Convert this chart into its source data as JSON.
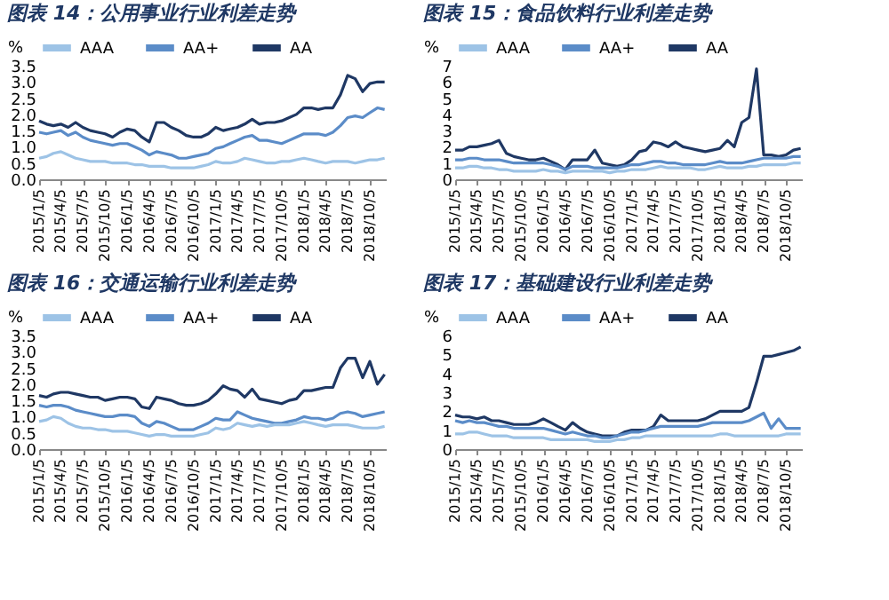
{
  "chart_data": [
    {
      "type": "line",
      "title": "图表 14：公用事业行业利差走势",
      "ylabel": "%",
      "legend": "top",
      "grid": false,
      "line_style": "solid",
      "marker": "none",
      "x": [
        "2015-01-05",
        "2015-02-05",
        "2015-03-05",
        "2015-04-05",
        "2015-05-05",
        "2015-06-05",
        "2015-07-05",
        "2015-08-05",
        "2015-09-05",
        "2015-10-05",
        "2015-11-05",
        "2015-12-05",
        "2016-01-05",
        "2016-02-05",
        "2016-03-05",
        "2016-04-05",
        "2016-05-05",
        "2016-06-05",
        "2016-07-05",
        "2016-08-05",
        "2016-09-05",
        "2016-10-05",
        "2016-11-05",
        "2016-12-05",
        "2017-01-05",
        "2017-02-05",
        "2017-03-05",
        "2017-04-05",
        "2017-05-05",
        "2017-06-05",
        "2017-07-05",
        "2017-08-05",
        "2017-09-05",
        "2017-10-05",
        "2017-11-05",
        "2017-12-05",
        "2018-01-05",
        "2018-02-05",
        "2018-03-05",
        "2018-04-05",
        "2018-05-05",
        "2018-06-05",
        "2018-07-05",
        "2018-08-05",
        "2018-09-05",
        "2018-10-05",
        "2018-11-05",
        "2018-12-05"
      ],
      "xlim": [
        "2015-01-05",
        "2018-12-10"
      ],
      "xticks": [
        {
          "value": "2015-01-05",
          "label": "2015/1/5"
        },
        {
          "value": "2015-04-05",
          "label": "2015/4/5"
        },
        {
          "value": "2015-07-05",
          "label": "2015/7/5"
        },
        {
          "value": "2015-10-05",
          "label": "2015/10/5"
        },
        {
          "value": "2016-01-05",
          "label": "2016/1/5"
        },
        {
          "value": "2016-04-05",
          "label": "2016/4/5"
        },
        {
          "value": "2016-07-05",
          "label": "2016/7/5"
        },
        {
          "value": "2016-10-05",
          "label": "2016/10/5"
        },
        {
          "value": "2017-01-05",
          "label": "2017/1/5"
        },
        {
          "value": "2017-04-05",
          "label": "2017/4/5"
        },
        {
          "value": "2017-07-05",
          "label": "2017/7/5"
        },
        {
          "value": "2017-10-05",
          "label": "2017/10/5"
        },
        {
          "value": "2018-01-05",
          "label": "2018/1/5"
        },
        {
          "value": "2018-04-05",
          "label": "2018/4/5"
        },
        {
          "value": "2018-07-05",
          "label": "2018/7/5"
        },
        {
          "value": "2018-10-05",
          "label": "2018/10/5"
        }
      ],
      "ylim": [
        0,
        3.5
      ],
      "yticks": [
        {
          "value": 0,
          "label": "0.0"
        },
        {
          "value": 0.5,
          "label": "0.5"
        },
        {
          "value": 1,
          "label": "1.0"
        },
        {
          "value": 1.5,
          "label": "1.5"
        },
        {
          "value": 2,
          "label": "2.0"
        },
        {
          "value": 2.5,
          "label": "2.5"
        },
        {
          "value": 3,
          "label": "3.0"
        },
        {
          "value": 3.5,
          "label": "3.5"
        }
      ],
      "series": [
        {
          "name": "AAA",
          "color": "#9dc3e6",
          "values": [
            0.65,
            0.7,
            0.8,
            0.85,
            0.75,
            0.65,
            0.6,
            0.55,
            0.55,
            0.55,
            0.5,
            0.5,
            0.5,
            0.45,
            0.45,
            0.4,
            0.4,
            0.4,
            0.35,
            0.35,
            0.35,
            0.35,
            0.4,
            0.45,
            0.55,
            0.5,
            0.5,
            0.55,
            0.65,
            0.6,
            0.55,
            0.5,
            0.5,
            0.55,
            0.55,
            0.6,
            0.65,
            0.6,
            0.55,
            0.5,
            0.55,
            0.55,
            0.55,
            0.5,
            0.55,
            0.6,
            0.6,
            0.65
          ]
        },
        {
          "name": "AA+",
          "color": "#5b8cc8",
          "values": [
            1.45,
            1.4,
            1.45,
            1.5,
            1.35,
            1.45,
            1.3,
            1.2,
            1.15,
            1.1,
            1.05,
            1.1,
            1.1,
            1.0,
            0.9,
            0.75,
            0.85,
            0.8,
            0.75,
            0.65,
            0.65,
            0.7,
            0.75,
            0.8,
            0.95,
            1.0,
            1.1,
            1.2,
            1.3,
            1.35,
            1.2,
            1.2,
            1.15,
            1.1,
            1.2,
            1.3,
            1.4,
            1.4,
            1.4,
            1.35,
            1.45,
            1.65,
            1.9,
            1.95,
            1.9,
            2.05,
            2.2,
            2.15
          ]
        },
        {
          "name": "AA",
          "color": "#1f3864",
          "values": [
            1.8,
            1.7,
            1.65,
            1.7,
            1.6,
            1.75,
            1.6,
            1.5,
            1.45,
            1.4,
            1.3,
            1.45,
            1.55,
            1.5,
            1.3,
            1.15,
            1.75,
            1.75,
            1.6,
            1.5,
            1.35,
            1.3,
            1.3,
            1.4,
            1.6,
            1.5,
            1.55,
            1.6,
            1.7,
            1.85,
            1.7,
            1.75,
            1.75,
            1.8,
            1.9,
            2.0,
            2.2,
            2.2,
            2.15,
            2.2,
            2.2,
            2.6,
            3.2,
            3.1,
            2.7,
            2.95,
            3.0,
            3.0
          ]
        }
      ]
    },
    {
      "type": "line",
      "title": "图表 15：食品饮料行业利差走势",
      "ylabel": "%",
      "legend": "top",
      "grid": false,
      "line_style": "solid",
      "marker": "none",
      "x": [
        "2015-01-05",
        "2015-02-05",
        "2015-03-05",
        "2015-04-05",
        "2015-05-05",
        "2015-06-05",
        "2015-07-05",
        "2015-08-05",
        "2015-09-05",
        "2015-10-05",
        "2015-11-05",
        "2015-12-05",
        "2016-01-05",
        "2016-02-05",
        "2016-03-05",
        "2016-04-05",
        "2016-05-05",
        "2016-06-05",
        "2016-07-05",
        "2016-08-05",
        "2016-09-05",
        "2016-10-05",
        "2016-11-05",
        "2016-12-05",
        "2017-01-05",
        "2017-02-05",
        "2017-03-05",
        "2017-04-05",
        "2017-05-05",
        "2017-06-05",
        "2017-07-05",
        "2017-08-05",
        "2017-09-05",
        "2017-10-05",
        "2017-11-05",
        "2017-12-05",
        "2018-01-05",
        "2018-02-05",
        "2018-03-05",
        "2018-04-05",
        "2018-05-05",
        "2018-06-05",
        "2018-07-05",
        "2018-08-05",
        "2018-09-05",
        "2018-10-05",
        "2018-11-05",
        "2018-12-05"
      ],
      "xlim": [
        "2015-01-05",
        "2018-12-10"
      ],
      "xticks": [
        {
          "value": "2015-01-05",
          "label": "2015/1/5"
        },
        {
          "value": "2015-04-05",
          "label": "2015/4/5"
        },
        {
          "value": "2015-07-05",
          "label": "2015/7/5"
        },
        {
          "value": "2015-10-05",
          "label": "2015/10/5"
        },
        {
          "value": "2016-01-05",
          "label": "2016/1/5"
        },
        {
          "value": "2016-04-05",
          "label": "2016/4/5"
        },
        {
          "value": "2016-07-05",
          "label": "2016/7/5"
        },
        {
          "value": "2016-10-05",
          "label": "2016/10/5"
        },
        {
          "value": "2017-01-05",
          "label": "2017/1/5"
        },
        {
          "value": "2017-04-05",
          "label": "2017/4/5"
        },
        {
          "value": "2017-07-05",
          "label": "2017/7/5"
        },
        {
          "value": "2017-10-05",
          "label": "2017/10/5"
        },
        {
          "value": "2018-01-05",
          "label": "2018/1/5"
        },
        {
          "value": "2018-04-05",
          "label": "2018/4/5"
        },
        {
          "value": "2018-07-05",
          "label": "2018/7/5"
        },
        {
          "value": "2018-10-05",
          "label": "2018/10/5"
        }
      ],
      "ylim": [
        0,
        7
      ],
      "yticks": [
        0,
        1,
        2,
        3,
        4,
        5,
        6,
        7
      ],
      "series": [
        {
          "name": "AAA",
          "color": "#9dc3e6",
          "values": [
            0.7,
            0.7,
            0.8,
            0.8,
            0.7,
            0.7,
            0.6,
            0.6,
            0.5,
            0.5,
            0.5,
            0.5,
            0.6,
            0.5,
            0.5,
            0.4,
            0.5,
            0.5,
            0.5,
            0.5,
            0.5,
            0.4,
            0.5,
            0.5,
            0.6,
            0.6,
            0.6,
            0.7,
            0.8,
            0.7,
            0.7,
            0.7,
            0.7,
            0.6,
            0.6,
            0.7,
            0.8,
            0.7,
            0.7,
            0.7,
            0.8,
            0.8,
            0.9,
            0.9,
            0.9,
            0.9,
            1.0,
            1.0
          ]
        },
        {
          "name": "AA+",
          "color": "#5b8cc8",
          "values": [
            1.2,
            1.2,
            1.3,
            1.3,
            1.2,
            1.2,
            1.2,
            1.1,
            1.0,
            1.0,
            1.0,
            1.0,
            1.0,
            0.9,
            0.8,
            0.6,
            0.8,
            0.8,
            0.8,
            0.7,
            0.7,
            0.7,
            0.7,
            0.8,
            0.9,
            0.9,
            1.0,
            1.1,
            1.1,
            1.0,
            1.0,
            0.9,
            0.9,
            0.9,
            0.9,
            1.0,
            1.1,
            1.0,
            1.0,
            1.0,
            1.1,
            1.2,
            1.3,
            1.3,
            1.3,
            1.3,
            1.4,
            1.4
          ]
        },
        {
          "name": "AA",
          "color": "#1f3864",
          "values": [
            1.8,
            1.8,
            2.0,
            2.0,
            2.1,
            2.2,
            2.4,
            1.6,
            1.4,
            1.3,
            1.2,
            1.2,
            1.3,
            1.1,
            0.9,
            0.6,
            1.2,
            1.2,
            1.2,
            1.8,
            1.0,
            0.9,
            0.8,
            0.9,
            1.2,
            1.7,
            1.8,
            2.3,
            2.2,
            2.0,
            2.3,
            2.0,
            1.9,
            1.8,
            1.7,
            1.8,
            1.9,
            2.4,
            2.0,
            3.5,
            3.8,
            6.8,
            1.5,
            1.5,
            1.4,
            1.5,
            1.8,
            1.9
          ]
        }
      ]
    },
    {
      "type": "line",
      "title": "图表 16：交通运输行业利差走势",
      "ylabel": "%",
      "legend": "top",
      "grid": false,
      "line_style": "solid",
      "marker": "none",
      "x": [
        "2015-01-05",
        "2015-02-05",
        "2015-03-05",
        "2015-04-05",
        "2015-05-05",
        "2015-06-05",
        "2015-07-05",
        "2015-08-05",
        "2015-09-05",
        "2015-10-05",
        "2015-11-05",
        "2015-12-05",
        "2016-01-05",
        "2016-02-05",
        "2016-03-05",
        "2016-04-05",
        "2016-05-05",
        "2016-06-05",
        "2016-07-05",
        "2016-08-05",
        "2016-09-05",
        "2016-10-05",
        "2016-11-05",
        "2016-12-05",
        "2017-01-05",
        "2017-02-05",
        "2017-03-05",
        "2017-04-05",
        "2017-05-05",
        "2017-06-05",
        "2017-07-05",
        "2017-08-05",
        "2017-09-05",
        "2017-10-05",
        "2017-11-05",
        "2017-12-05",
        "2018-01-05",
        "2018-02-05",
        "2018-03-05",
        "2018-04-05",
        "2018-05-05",
        "2018-06-05",
        "2018-07-05",
        "2018-08-05",
        "2018-09-05",
        "2018-10-05",
        "2018-11-05",
        "2018-12-05"
      ],
      "xlim": [
        "2015-01-05",
        "2018-12-10"
      ],
      "xticks": [
        {
          "value": "2015-01-05",
          "label": "2015/1/5"
        },
        {
          "value": "2015-04-05",
          "label": "2015/4/5"
        },
        {
          "value": "2015-07-05",
          "label": "2015/7/5"
        },
        {
          "value": "2015-10-05",
          "label": "2015/10/5"
        },
        {
          "value": "2016-01-05",
          "label": "2016/1/5"
        },
        {
          "value": "2016-04-05",
          "label": "2016/4/5"
        },
        {
          "value": "2016-07-05",
          "label": "2016/7/5"
        },
        {
          "value": "2016-10-05",
          "label": "2016/10/5"
        },
        {
          "value": "2017-01-05",
          "label": "2017/1/5"
        },
        {
          "value": "2017-04-05",
          "label": "2017/4/5"
        },
        {
          "value": "2017-07-05",
          "label": "2017/7/5"
        },
        {
          "value": "2017-10-05",
          "label": "2017/10/5"
        },
        {
          "value": "2018-01-05",
          "label": "2018/1/5"
        },
        {
          "value": "2018-04-05",
          "label": "2018/4/5"
        },
        {
          "value": "2018-07-05",
          "label": "2018/7/5"
        },
        {
          "value": "2018-10-05",
          "label": "2018/10/5"
        }
      ],
      "ylim": [
        0,
        3.5
      ],
      "yticks": [
        {
          "value": 0,
          "label": "0.0"
        },
        {
          "value": 0.5,
          "label": "0.5"
        },
        {
          "value": 1,
          "label": "1.0"
        },
        {
          "value": 1.5,
          "label": "1.5"
        },
        {
          "value": 2,
          "label": "2.0"
        },
        {
          "value": 2.5,
          "label": "2.5"
        },
        {
          "value": 3,
          "label": "3.0"
        },
        {
          "value": 3.5,
          "label": "3.5"
        }
      ],
      "series": [
        {
          "name": "AAA",
          "color": "#9dc3e6",
          "values": [
            0.85,
            0.9,
            1.0,
            0.95,
            0.8,
            0.7,
            0.65,
            0.65,
            0.6,
            0.6,
            0.55,
            0.55,
            0.55,
            0.5,
            0.45,
            0.4,
            0.45,
            0.45,
            0.4,
            0.4,
            0.4,
            0.4,
            0.45,
            0.5,
            0.65,
            0.6,
            0.65,
            0.8,
            0.75,
            0.7,
            0.75,
            0.7,
            0.75,
            0.75,
            0.75,
            0.8,
            0.85,
            0.8,
            0.75,
            0.7,
            0.75,
            0.75,
            0.75,
            0.7,
            0.65,
            0.65,
            0.65,
            0.7
          ]
        },
        {
          "name": "AA+",
          "color": "#5b8cc8",
          "values": [
            1.35,
            1.3,
            1.35,
            1.35,
            1.3,
            1.2,
            1.15,
            1.1,
            1.05,
            1.0,
            1.0,
            1.05,
            1.05,
            1.0,
            0.8,
            0.7,
            0.85,
            0.8,
            0.7,
            0.6,
            0.6,
            0.6,
            0.7,
            0.8,
            0.95,
            0.9,
            0.9,
            1.15,
            1.05,
            0.95,
            0.9,
            0.85,
            0.8,
            0.8,
            0.85,
            0.9,
            1.0,
            0.95,
            0.95,
            0.9,
            0.95,
            1.1,
            1.15,
            1.1,
            1.0,
            1.05,
            1.1,
            1.15
          ]
        },
        {
          "name": "AA",
          "color": "#1f3864",
          "values": [
            1.65,
            1.6,
            1.7,
            1.75,
            1.75,
            1.7,
            1.65,
            1.6,
            1.6,
            1.5,
            1.55,
            1.6,
            1.6,
            1.55,
            1.3,
            1.25,
            1.6,
            1.55,
            1.5,
            1.4,
            1.35,
            1.35,
            1.4,
            1.5,
            1.7,
            1.95,
            1.85,
            1.8,
            1.6,
            1.85,
            1.55,
            1.5,
            1.45,
            1.4,
            1.5,
            1.55,
            1.8,
            1.8,
            1.85,
            1.9,
            1.9,
            2.5,
            2.8,
            2.8,
            2.2,
            2.7,
            2.0,
            2.3
          ]
        }
      ]
    },
    {
      "type": "line",
      "title": "图表 17：基础建设行业利差走势",
      "ylabel": "%",
      "legend": "top",
      "grid": false,
      "line_style": "solid",
      "marker": "none",
      "x": [
        "2015-01-05",
        "2015-02-05",
        "2015-03-05",
        "2015-04-05",
        "2015-05-05",
        "2015-06-05",
        "2015-07-05",
        "2015-08-05",
        "2015-09-05",
        "2015-10-05",
        "2015-11-05",
        "2015-12-05",
        "2016-01-05",
        "2016-02-05",
        "2016-03-05",
        "2016-04-05",
        "2016-05-05",
        "2016-06-05",
        "2016-07-05",
        "2016-08-05",
        "2016-09-05",
        "2016-10-05",
        "2016-11-05",
        "2016-12-05",
        "2017-01-05",
        "2017-02-05",
        "2017-03-05",
        "2017-04-05",
        "2017-05-05",
        "2017-06-05",
        "2017-07-05",
        "2017-08-05",
        "2017-09-05",
        "2017-10-05",
        "2017-11-05",
        "2017-12-05",
        "2018-01-05",
        "2018-02-05",
        "2018-03-05",
        "2018-04-05",
        "2018-05-05",
        "2018-06-05",
        "2018-07-05",
        "2018-08-05",
        "2018-09-05",
        "2018-10-05",
        "2018-11-05",
        "2018-12-05"
      ],
      "xlim": [
        "2015-01-05",
        "2018-12-10"
      ],
      "xticks": [
        {
          "value": "2015-01-05",
          "label": "2015/1/5"
        },
        {
          "value": "2015-04-05",
          "label": "2015/4/5"
        },
        {
          "value": "2015-07-05",
          "label": "2015/7/5"
        },
        {
          "value": "2015-10-05",
          "label": "2015/10/5"
        },
        {
          "value": "2016-01-05",
          "label": "2016/1/5"
        },
        {
          "value": "2016-04-05",
          "label": "2016/4/5"
        },
        {
          "value": "2016-07-05",
          "label": "2016/7/5"
        },
        {
          "value": "2016-10-05",
          "label": "2016/10/5"
        },
        {
          "value": "2017-01-05",
          "label": "2017/1/5"
        },
        {
          "value": "2017-04-05",
          "label": "2017/4/5"
        },
        {
          "value": "2017-07-05",
          "label": "2017/7/5"
        },
        {
          "value": "2017-10-05",
          "label": "2017/10/5"
        },
        {
          "value": "2018-01-05",
          "label": "2018/1/5"
        },
        {
          "value": "2018-04-05",
          "label": "2018/4/5"
        },
        {
          "value": "2018-07-05",
          "label": "2018/7/5"
        },
        {
          "value": "2018-10-05",
          "label": "2018/10/5"
        }
      ],
      "ylim": [
        0,
        6
      ],
      "yticks": [
        0,
        1,
        2,
        3,
        4,
        5,
        6
      ],
      "series": [
        {
          "name": "AAA",
          "color": "#9dc3e6",
          "values": [
            0.8,
            0.8,
            0.9,
            0.9,
            0.8,
            0.7,
            0.7,
            0.7,
            0.6,
            0.6,
            0.6,
            0.6,
            0.6,
            0.5,
            0.5,
            0.5,
            0.5,
            0.5,
            0.5,
            0.4,
            0.4,
            0.4,
            0.5,
            0.5,
            0.6,
            0.6,
            0.7,
            0.7,
            0.7,
            0.7,
            0.7,
            0.7,
            0.7,
            0.7,
            0.7,
            0.7,
            0.8,
            0.8,
            0.7,
            0.7,
            0.7,
            0.7,
            0.7,
            0.7,
            0.7,
            0.8,
            0.8,
            0.8
          ]
        },
        {
          "name": "AA+",
          "color": "#5b8cc8",
          "values": [
            1.5,
            1.4,
            1.5,
            1.4,
            1.4,
            1.3,
            1.2,
            1.2,
            1.1,
            1.1,
            1.1,
            1.1,
            1.1,
            1.0,
            0.9,
            0.8,
            0.9,
            0.8,
            0.7,
            0.7,
            0.6,
            0.6,
            0.7,
            0.8,
            0.9,
            0.9,
            1.0,
            1.1,
            1.2,
            1.2,
            1.2,
            1.2,
            1.2,
            1.2,
            1.3,
            1.4,
            1.4,
            1.4,
            1.4,
            1.4,
            1.5,
            1.7,
            1.9,
            1.1,
            1.6,
            1.1,
            1.1,
            1.1
          ]
        },
        {
          "name": "AA",
          "color": "#1f3864",
          "values": [
            1.8,
            1.7,
            1.7,
            1.6,
            1.7,
            1.5,
            1.5,
            1.4,
            1.3,
            1.3,
            1.3,
            1.4,
            1.6,
            1.4,
            1.2,
            1.0,
            1.4,
            1.1,
            0.9,
            0.8,
            0.7,
            0.7,
            0.7,
            0.9,
            1.0,
            1.0,
            1.0,
            1.2,
            1.8,
            1.5,
            1.5,
            1.5,
            1.5,
            1.5,
            1.6,
            1.8,
            2.0,
            2.0,
            2.0,
            2.0,
            2.2,
            3.5,
            4.9,
            4.9,
            5.0,
            5.1,
            5.2,
            5.4
          ]
        }
      ]
    }
  ]
}
